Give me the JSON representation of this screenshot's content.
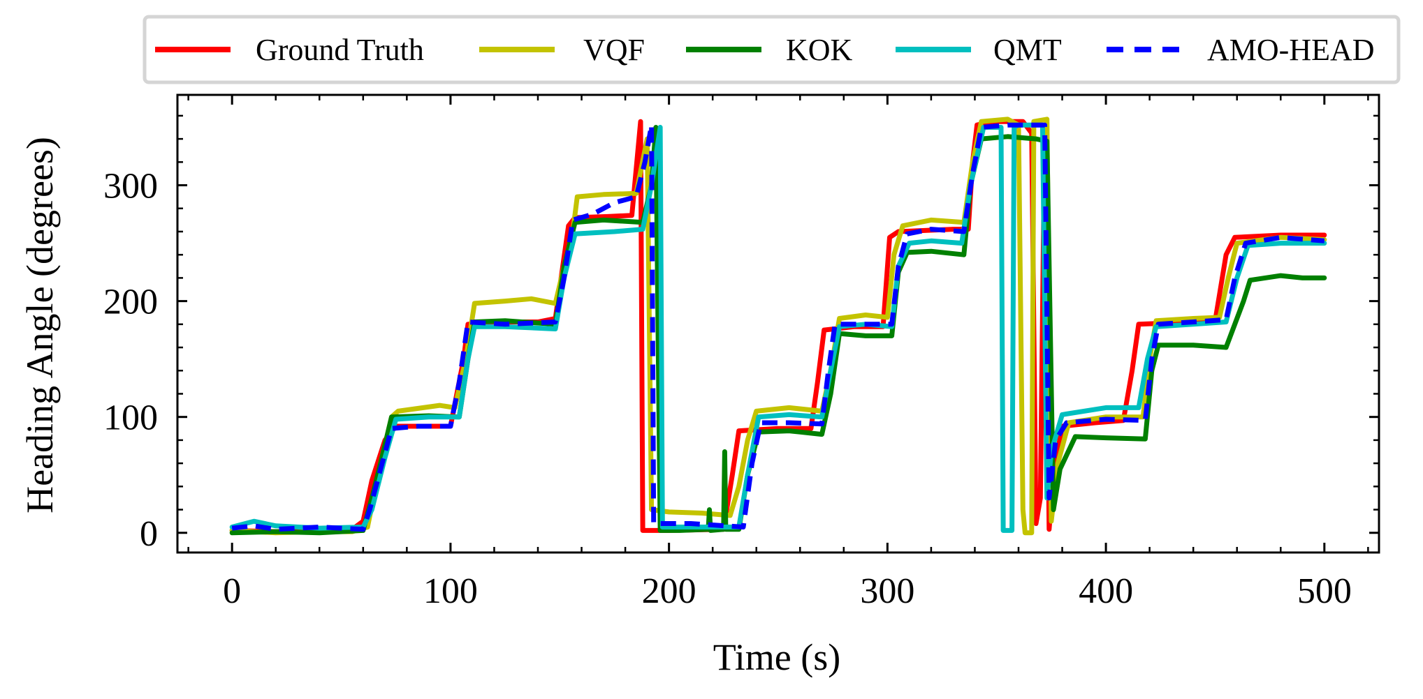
{
  "chart_data": {
    "type": "line",
    "title": "",
    "xlabel": "Time (s)",
    "ylabel": "Heading Angle (degrees)",
    "xlim": [
      -25,
      525
    ],
    "ylim": [
      -17,
      378
    ],
    "x_ticks": [
      0,
      100,
      200,
      300,
      400,
      500
    ],
    "x_tick_labels": [
      "0",
      "100",
      "200",
      "300",
      "400",
      "500"
    ],
    "y_ticks": [
      0,
      100,
      200,
      300
    ],
    "y_tick_labels": [
      "0",
      "100",
      "200",
      "300"
    ],
    "x_minor_step": 20,
    "y_minor_step": 20,
    "legend_position": "top (outside, above plot)",
    "series": [
      {
        "name": "Ground Truth",
        "color": "#ff0000",
        "dash": "solid",
        "points": [
          [
            0,
            2
          ],
          [
            20,
            1
          ],
          [
            40,
            2
          ],
          [
            55,
            3
          ],
          [
            60,
            10
          ],
          [
            64,
            45
          ],
          [
            70,
            80
          ],
          [
            75,
            92
          ],
          [
            90,
            92
          ],
          [
            100,
            92
          ],
          [
            106,
            150
          ],
          [
            108,
            180
          ],
          [
            120,
            182
          ],
          [
            140,
            182
          ],
          [
            148,
            185
          ],
          [
            154,
            265
          ],
          [
            157,
            272
          ],
          [
            172,
            273
          ],
          [
            183,
            274
          ],
          [
            187,
            355
          ],
          [
            188,
            2
          ],
          [
            200,
            2
          ],
          [
            225,
            3
          ],
          [
            229,
            50
          ],
          [
            232,
            88
          ],
          [
            250,
            90
          ],
          [
            265,
            90
          ],
          [
            268,
            130
          ],
          [
            271,
            175
          ],
          [
            285,
            178
          ],
          [
            298,
            178
          ],
          [
            301,
            255
          ],
          [
            305,
            260
          ],
          [
            330,
            262
          ],
          [
            337,
            262
          ],
          [
            339,
            320
          ],
          [
            341,
            352
          ],
          [
            348,
            355
          ],
          [
            362,
            355
          ],
          [
            366,
            345
          ],
          [
            368,
            8
          ],
          [
            370,
            30
          ],
          [
            372,
            350
          ],
          [
            374,
            3
          ],
          [
            376,
            50
          ],
          [
            380,
            92
          ],
          [
            395,
            95
          ],
          [
            408,
            97
          ],
          [
            412,
            140
          ],
          [
            415,
            180
          ],
          [
            440,
            182
          ],
          [
            450,
            183
          ],
          [
            455,
            240
          ],
          [
            459,
            255
          ],
          [
            480,
            257
          ],
          [
            500,
            257
          ]
        ]
      },
      {
        "name": "VQF",
        "color": "#c3c300",
        "dash": "solid",
        "points": [
          [
            0,
            2
          ],
          [
            20,
            0
          ],
          [
            40,
            1
          ],
          [
            55,
            1
          ],
          [
            62,
            5
          ],
          [
            68,
            60
          ],
          [
            73,
            100
          ],
          [
            76,
            105
          ],
          [
            95,
            110
          ],
          [
            102,
            108
          ],
          [
            107,
            150
          ],
          [
            111,
            198
          ],
          [
            125,
            200
          ],
          [
            137,
            202
          ],
          [
            148,
            198
          ],
          [
            152,
            230
          ],
          [
            156,
            260
          ],
          [
            158,
            290
          ],
          [
            170,
            292
          ],
          [
            185,
            293
          ],
          [
            190,
            340
          ],
          [
            192,
            20
          ],
          [
            200,
            18
          ],
          [
            215,
            17
          ],
          [
            228,
            15
          ],
          [
            232,
            40
          ],
          [
            236,
            80
          ],
          [
            240,
            105
          ],
          [
            255,
            108
          ],
          [
            270,
            105
          ],
          [
            274,
            140
          ],
          [
            278,
            185
          ],
          [
            290,
            188
          ],
          [
            300,
            186
          ],
          [
            303,
            240
          ],
          [
            307,
            265
          ],
          [
            320,
            270
          ],
          [
            335,
            268
          ],
          [
            339,
            320
          ],
          [
            343,
            355
          ],
          [
            355,
            357
          ],
          [
            360,
            352
          ],
          [
            362,
            20
          ],
          [
            363,
            0
          ],
          [
            366,
            0
          ],
          [
            367,
            355
          ],
          [
            373,
            357
          ],
          [
            375,
            10
          ],
          [
            378,
            60
          ],
          [
            383,
            95
          ],
          [
            400,
            100
          ],
          [
            417,
            100
          ],
          [
            420,
            150
          ],
          [
            423,
            183
          ],
          [
            440,
            185
          ],
          [
            452,
            186
          ],
          [
            456,
            220
          ],
          [
            460,
            250
          ],
          [
            480,
            255
          ],
          [
            500,
            253
          ]
        ]
      },
      {
        "name": "KOK",
        "color": "#008000",
        "dash": "solid",
        "points": [
          [
            0,
            0
          ],
          [
            20,
            1
          ],
          [
            40,
            0
          ],
          [
            60,
            2
          ],
          [
            64,
            30
          ],
          [
            68,
            60
          ],
          [
            73,
            100
          ],
          [
            90,
            101
          ],
          [
            104,
            100
          ],
          [
            108,
            150
          ],
          [
            111,
            182
          ],
          [
            125,
            183
          ],
          [
            148,
            180
          ],
          [
            152,
            230
          ],
          [
            157,
            268
          ],
          [
            170,
            270
          ],
          [
            188,
            268
          ],
          [
            192,
            300
          ],
          [
            194,
            350
          ],
          [
            196,
            2
          ],
          [
            205,
            2
          ],
          [
            218,
            3
          ],
          [
            218.5,
            20
          ],
          [
            219,
            2
          ],
          [
            225,
            3
          ],
          [
            225.5,
            70
          ],
          [
            226,
            3
          ],
          [
            232,
            3
          ],
          [
            236,
            50
          ],
          [
            241,
            87
          ],
          [
            255,
            88
          ],
          [
            270,
            85
          ],
          [
            274,
            120
          ],
          [
            278,
            172
          ],
          [
            290,
            170
          ],
          [
            302,
            170
          ],
          [
            305,
            225
          ],
          [
            309,
            242
          ],
          [
            320,
            243
          ],
          [
            335,
            240
          ],
          [
            338,
            300
          ],
          [
            343,
            340
          ],
          [
            355,
            342
          ],
          [
            368,
            340
          ],
          [
            373,
            338
          ],
          [
            376,
            20
          ],
          [
            379,
            55
          ],
          [
            386,
            83
          ],
          [
            400,
            82
          ],
          [
            418,
            81
          ],
          [
            421,
            140
          ],
          [
            424,
            162
          ],
          [
            440,
            162
          ],
          [
            455,
            160
          ],
          [
            463,
            200
          ],
          [
            466,
            218
          ],
          [
            480,
            222
          ],
          [
            490,
            220
          ],
          [
            500,
            220
          ]
        ]
      },
      {
        "name": "QMT",
        "color": "#00bfbf",
        "dash": "solid",
        "points": [
          [
            0,
            5
          ],
          [
            10,
            10
          ],
          [
            20,
            6
          ],
          [
            40,
            4
          ],
          [
            60,
            5
          ],
          [
            64,
            20
          ],
          [
            70,
            65
          ],
          [
            75,
            98
          ],
          [
            90,
            100
          ],
          [
            104,
            100
          ],
          [
            108,
            150
          ],
          [
            111,
            178
          ],
          [
            125,
            178
          ],
          [
            148,
            176
          ],
          [
            152,
            220
          ],
          [
            157,
            258
          ],
          [
            175,
            260
          ],
          [
            188,
            262
          ],
          [
            192,
            300
          ],
          [
            196,
            350
          ],
          [
            197,
            5
          ],
          [
            210,
            5
          ],
          [
            232,
            5
          ],
          [
            236,
            50
          ],
          [
            241,
            100
          ],
          [
            255,
            102
          ],
          [
            270,
            100
          ],
          [
            274,
            140
          ],
          [
            278,
            178
          ],
          [
            290,
            180
          ],
          [
            302,
            178
          ],
          [
            305,
            230
          ],
          [
            310,
            250
          ],
          [
            320,
            252
          ],
          [
            334,
            250
          ],
          [
            338,
            300
          ],
          [
            344,
            350
          ],
          [
            352,
            350
          ],
          [
            353,
            2
          ],
          [
            357,
            2
          ],
          [
            358,
            350
          ],
          [
            360,
            352
          ],
          [
            371,
            352
          ],
          [
            373,
            30
          ],
          [
            375,
            70
          ],
          [
            380,
            102
          ],
          [
            400,
            108
          ],
          [
            415,
            108
          ],
          [
            419,
            150
          ],
          [
            423,
            178
          ],
          [
            440,
            180
          ],
          [
            455,
            182
          ],
          [
            460,
            220
          ],
          [
            465,
            248
          ],
          [
            480,
            250
          ],
          [
            500,
            250
          ]
        ]
      },
      {
        "name": "AMO-HEAD",
        "color": "#0000ff",
        "dash": "dashed",
        "points": [
          [
            0,
            4
          ],
          [
            10,
            6
          ],
          [
            20,
            3
          ],
          [
            40,
            5
          ],
          [
            60,
            3
          ],
          [
            63,
            20
          ],
          [
            68,
            55
          ],
          [
            73,
            90
          ],
          [
            85,
            92
          ],
          [
            100,
            92
          ],
          [
            104,
            130
          ],
          [
            108,
            182
          ],
          [
            125,
            180
          ],
          [
            148,
            182
          ],
          [
            152,
            220
          ],
          [
            156,
            270
          ],
          [
            165,
            275
          ],
          [
            175,
            285
          ],
          [
            185,
            290
          ],
          [
            189,
            320
          ],
          [
            192,
            352
          ],
          [
            193,
            8
          ],
          [
            210,
            8
          ],
          [
            234,
            5
          ],
          [
            238,
            60
          ],
          [
            242,
            95
          ],
          [
            255,
            95
          ],
          [
            270,
            94
          ],
          [
            273,
            140
          ],
          [
            276,
            180
          ],
          [
            290,
            180
          ],
          [
            302,
            180
          ],
          [
            305,
            230
          ],
          [
            309,
            258
          ],
          [
            320,
            262
          ],
          [
            335,
            260
          ],
          [
            339,
            310
          ],
          [
            343,
            350
          ],
          [
            355,
            352
          ],
          [
            372,
            352
          ],
          [
            374,
            30
          ],
          [
            377,
            80
          ],
          [
            382,
            95
          ],
          [
            400,
            98
          ],
          [
            418,
            97
          ],
          [
            421,
            150
          ],
          [
            424,
            180
          ],
          [
            440,
            182
          ],
          [
            455,
            184
          ],
          [
            459,
            220
          ],
          [
            464,
            250
          ],
          [
            480,
            255
          ],
          [
            500,
            252
          ]
        ]
      }
    ]
  }
}
